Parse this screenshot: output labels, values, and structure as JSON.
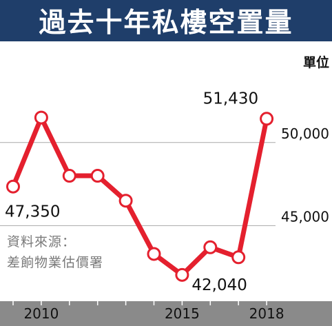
{
  "title": "過去十年私樓空置量",
  "unit": "單位",
  "source_lines": [
    "資料來源：",
    "差餉物業估價署"
  ],
  "colors": {
    "title_bg": "#1f3e6a",
    "line": "#e4202e",
    "axis_band": "#8a8a8a",
    "grid": "#a8a8a8"
  },
  "chart_data": {
    "type": "line",
    "x": [
      2009,
      2010,
      2011,
      2012,
      2013,
      2014,
      2015,
      2016,
      2017,
      2018
    ],
    "values": [
      47350,
      51500,
      48000,
      48000,
      46500,
      43300,
      42040,
      43700,
      43100,
      51430
    ],
    "value_labels": [
      {
        "index": 0,
        "text": "47,350"
      },
      {
        "index": 6,
        "text": "42,040"
      },
      {
        "index": 9,
        "text": "51,430"
      }
    ],
    "xtick_labels": [
      {
        "x": 2010,
        "text": "2010"
      },
      {
        "x": 2015,
        "text": "2015"
      },
      {
        "x": 2018,
        "text": "2018"
      }
    ],
    "ytick_labels": [
      {
        "y": 45000,
        "text": "45,000"
      },
      {
        "y": 50000,
        "text": "50,000"
      }
    ],
    "ylim": [
      40500,
      56000
    ],
    "grid": true
  }
}
